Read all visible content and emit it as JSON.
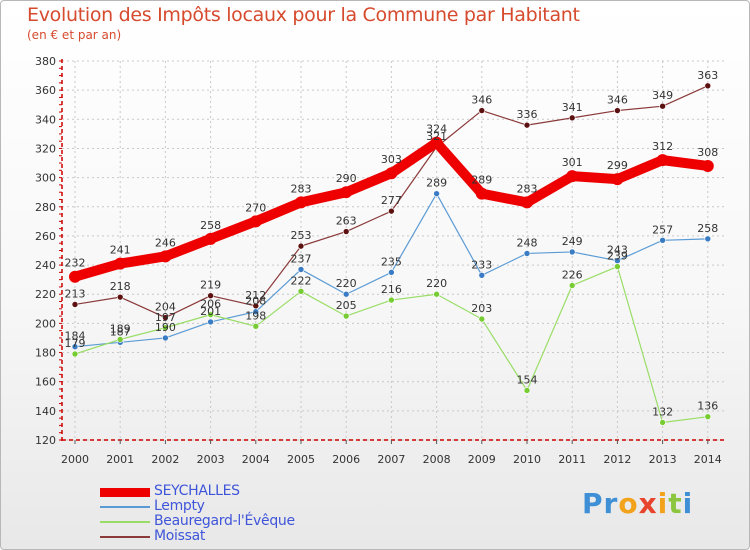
{
  "header": {
    "title": "Evolution des Impôts locaux pour la Commune par Habitant",
    "subtitle": "(en € et par an)"
  },
  "logo": {
    "letters": [
      "P",
      "r",
      "o",
      "x",
      "i",
      "t",
      "i"
    ]
  },
  "colors": {
    "title": "#d64a2e",
    "axis": "#cc0000",
    "grid": "#c8c8c8",
    "legend_text": "#3f55d9"
  },
  "chart_data": {
    "type": "line",
    "title": "Evolution des Impôts locaux pour la Commune par Habitant",
    "subtitle": "(en € et par an)",
    "xlabel": "",
    "ylabel": "",
    "categories": [
      "2000",
      "2001",
      "2002",
      "2003",
      "2004",
      "2005",
      "2006",
      "2007",
      "2008",
      "2009",
      "2010",
      "2011",
      "2012",
      "2013",
      "2014"
    ],
    "ylim": [
      120,
      380
    ],
    "yticks": [
      120,
      140,
      160,
      180,
      200,
      220,
      240,
      260,
      280,
      300,
      320,
      340,
      360,
      380
    ],
    "ytick_labels": [
      "120",
      "140",
      "160",
      "180",
      "200",
      "220",
      "240",
      "260",
      "280",
      "300",
      "320",
      "340",
      "360",
      "380"
    ],
    "grid": true,
    "legend_position": "bottom-left",
    "series": [
      {
        "name": "SEYCHALLES",
        "color": "#ee0000",
        "marker": "#ee0000",
        "values": [
          232,
          241,
          246,
          258,
          270,
          283,
          290,
          303,
          324,
          289,
          283,
          301,
          299,
          312,
          308
        ],
        "labels": [
          "232",
          "241",
          "246",
          "258",
          "270",
          "283",
          "290",
          "303",
          "324",
          "289",
          "283",
          "301",
          "299",
          "312",
          "308"
        ]
      },
      {
        "name": "Lempty",
        "color": "#5b9bd5",
        "marker": "#3a7cc4",
        "values": [
          184,
          187,
          190,
          201,
          208,
          237,
          220,
          235,
          289,
          233,
          248,
          249,
          243,
          257,
          258
        ],
        "labels": [
          "184",
          "187",
          "190",
          "201",
          "208",
          "237",
          "220",
          "235",
          "289",
          "233",
          "248",
          "249",
          "243",
          "257",
          "258"
        ]
      },
      {
        "name": "Beauregard-l'Évêque",
        "color": "#99dd66",
        "marker": "#77cc33",
        "values": [
          179,
          189,
          197,
          206,
          198,
          222,
          205,
          216,
          220,
          203,
          154,
          226,
          239,
          132,
          136
        ],
        "labels": [
          "179",
          "189",
          "197",
          "206",
          "198",
          "222",
          "205",
          "216",
          "220",
          "203",
          "154",
          "226",
          "239",
          "132",
          "136"
        ]
      },
      {
        "name": "Moissat",
        "color": "#8b3a3a",
        "marker": "#5c1010",
        "values": [
          213,
          218,
          204,
          219,
          212,
          253,
          263,
          277,
          321,
          346,
          336,
          341,
          346,
          349,
          363
        ],
        "labels": [
          "213",
          "218",
          "204",
          "219",
          "212",
          "253",
          "263",
          "277",
          "321",
          "346",
          "336",
          "341",
          "346",
          "349",
          "363"
        ]
      }
    ]
  }
}
